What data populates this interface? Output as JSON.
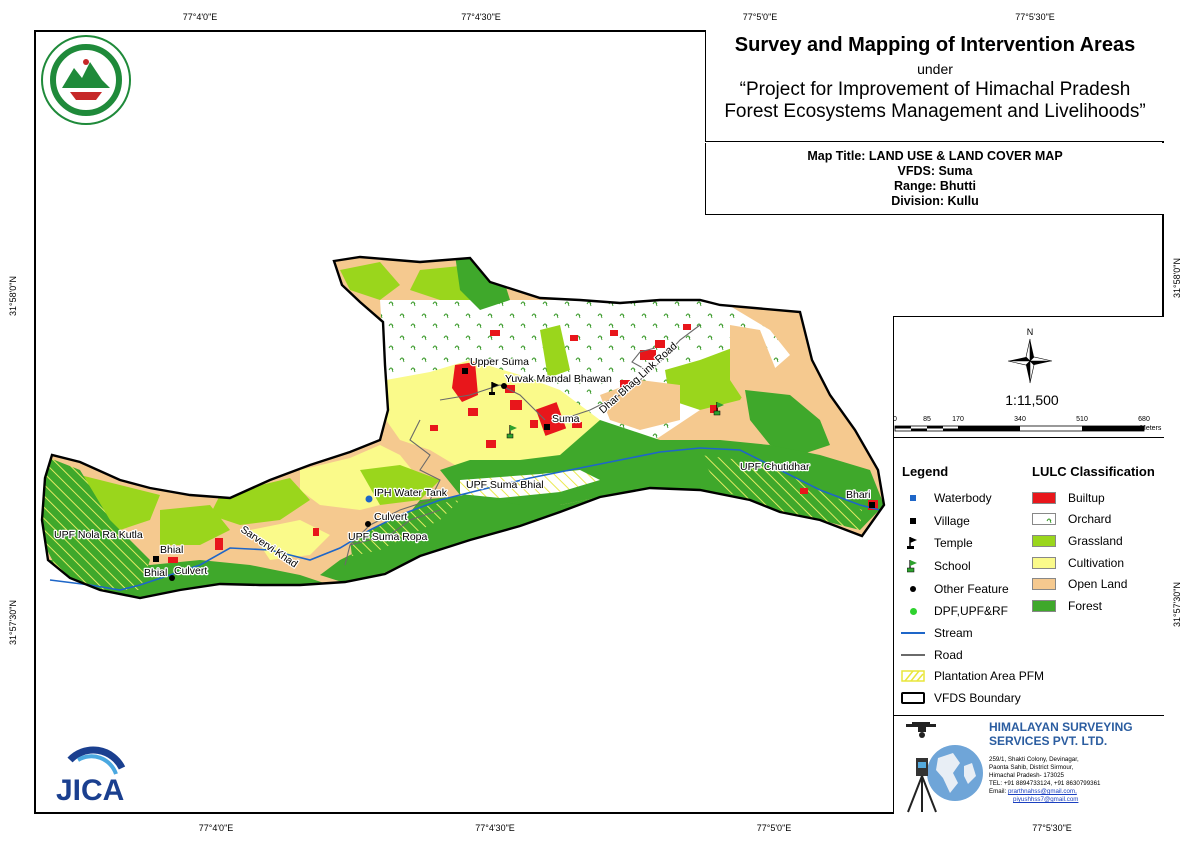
{
  "coords": {
    "top": [
      "77°4'0\"E",
      "77°4'30\"E",
      "77°5'0\"E",
      "77°5'30\"E"
    ],
    "bottom": [
      "77°4'0\"E",
      "77°4'30\"E",
      "77°5'0\"E",
      "77°5'30\"E"
    ],
    "left": [
      "31°58'0\"N",
      "31°57'30\"N"
    ],
    "right": [
      "31°58'0\"N",
      "31°57'30\"N"
    ]
  },
  "header": {
    "title": "Survey and Mapping of Intervention Areas",
    "under": "under",
    "project_line1": "“Project for Improvement of Himachal Pradesh",
    "project_line2": "Forest Ecosystems Management and Livelihoods”"
  },
  "info": {
    "map_title": "Map Title: LAND USE & LAND COVER MAP",
    "vfds": "VFDS: Suma",
    "range": "Range: Bhutti",
    "division": "Division: Kullu"
  },
  "scale": {
    "north": "N",
    "ratio": "1:11,500",
    "ticks": [
      "0",
      "85",
      "170",
      "340",
      "510",
      "680"
    ],
    "unit": "Meters"
  },
  "legend": {
    "heading": "Legend",
    "items": [
      {
        "label": "Waterbody",
        "icon": "blue-square"
      },
      {
        "label": "Village",
        "icon": "black-square"
      },
      {
        "label": "Temple",
        "icon": "flag-black"
      },
      {
        "label": "School",
        "icon": "flag-green"
      },
      {
        "label": "Other Feature",
        "icon": "black-dot"
      },
      {
        "label": "DPF,UPF&RF",
        "icon": "green-dot"
      },
      {
        "label": "Stream",
        "icon": "blue-line"
      },
      {
        "label": "Road",
        "icon": "grey-line"
      },
      {
        "label": "Plantation Area PFM",
        "icon": "yellow-hatch"
      },
      {
        "label": "VFDS Boundary",
        "icon": "black-outline"
      }
    ]
  },
  "lulc": {
    "heading": "LULC Classification",
    "classes": [
      {
        "label": "Builtup",
        "color": "#e8161b"
      },
      {
        "label": "Orchard",
        "color": "#ffffff"
      },
      {
        "label": "Grassland",
        "color": "#9ad61c"
      },
      {
        "label": "Cultivation",
        "color": "#fafa8a"
      },
      {
        "label": "Open Land",
        "color": "#f5c98f"
      },
      {
        "label": "Forest",
        "color": "#3fa82b"
      }
    ]
  },
  "map_labels": {
    "upper_suma": "Upper Suma",
    "yuvak": "Yuvak Mandal Bhawan",
    "suma": "Suma",
    "road": "Dhar Bhag Link Road",
    "upf_chutidhar": "UPF Chutidhar",
    "bhari": "Bhari",
    "iph": "IPH Water Tank",
    "upf_suma_bhial": "UPF Suma Bhial",
    "culvert1": "Culvert",
    "upf_suma_ropa": "UPF Suma Ropa",
    "khad": "Sarvervi Khad",
    "upf_nola": "UPF Nola Ra Kutla",
    "bhial1": "Bhial",
    "bhial2": "Bhial",
    "culvert2": "Culvert"
  },
  "company": {
    "name_line1": "HIMALAYAN SURVEYING",
    "name_line2": "SERVICES PVT. LTD.",
    "addr1": "259/1, Shakti Colony, Devinagar,",
    "addr2": "Paonta Sahib, District Sirmour,",
    "addr3": "Himachal Pradesh- 173025",
    "tel": "TEL: +91 8894733124, +91 8630799361",
    "email_label": "Email:",
    "email1": "prarthnahss@gmail.com,",
    "email2": "piyushhss7@gmail.com"
  },
  "logos": {
    "hp_forest": "Himachal Pradesh forest department seal",
    "jica": "JICA"
  }
}
